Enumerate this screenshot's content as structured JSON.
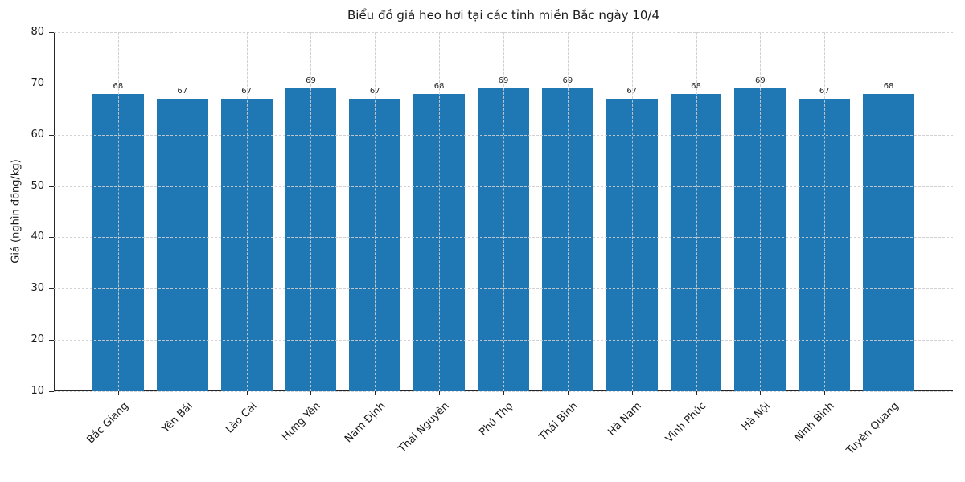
{
  "figure": {
    "background": "#ffffff",
    "text_color": "#1a1a1a",
    "spine_color": "#262626",
    "grid_color": "#cdcdcd",
    "grid_style": "dashed"
  },
  "chart_data": {
    "type": "bar",
    "title": "Biểu đồ giá heo hơi tại các tỉnh miền Bắc ngày 10/4",
    "xlabel": "",
    "ylabel": "Giá (nghìn đồng/kg)",
    "categories": [
      "Bắc Giang",
      "Yên Bái",
      "Lào Cai",
      "Hưng Yên",
      "Nam Định",
      "Thái Nguyên",
      "Phú Thọ",
      "Thái Bình",
      "Hà Nam",
      "Vĩnh Phúc",
      "Hà Nội",
      "Ninh Bình",
      "Tuyên Quang"
    ],
    "values": [
      68,
      67,
      67,
      69,
      67,
      68,
      69,
      69,
      67,
      68,
      69,
      67,
      68
    ],
    "value_labels_shown": true,
    "ylim": [
      10,
      80
    ],
    "yticks": [
      10,
      20,
      30,
      40,
      50,
      60,
      70,
      80
    ],
    "bar_color": "#1f77b4",
    "grid": "both, dashed, drawn above bars",
    "legend": "none",
    "x_tick_rotation_deg": 45
  }
}
